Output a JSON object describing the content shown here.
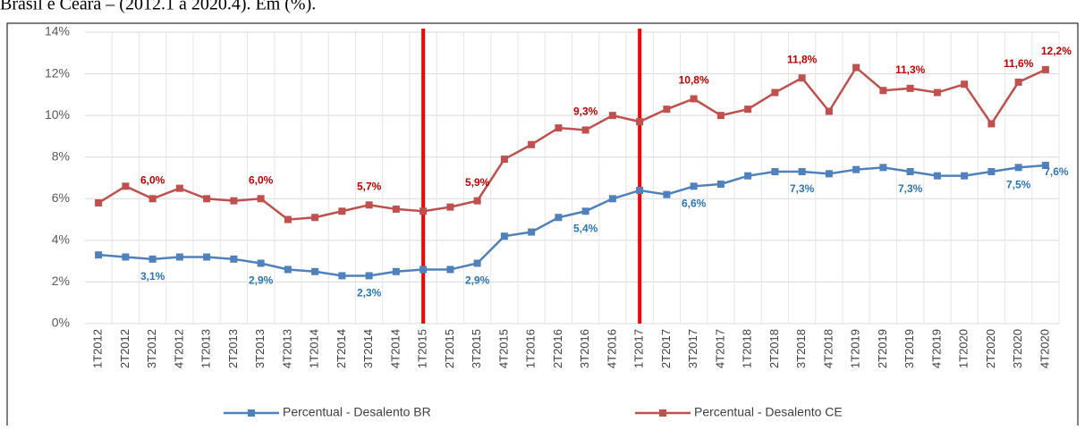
{
  "chart_data": {
    "type": "line",
    "title": "Brasil e Ceará – (2012.1 a 2020.4). Em (%).",
    "categories": [
      "1T2012",
      "2T2012",
      "3T2012",
      "4T2012",
      "1T2013",
      "2T2013",
      "3T2013",
      "4T2013",
      "1T2014",
      "2T2014",
      "3T2014",
      "4T2014",
      "1T2015",
      "2T2015",
      "3T2015",
      "4T2015",
      "1T2016",
      "2T2016",
      "3T2016",
      "4T2016",
      "1T2017",
      "2T2017",
      "3T2017",
      "4T2017",
      "1T2018",
      "2T2018",
      "3T2018",
      "4T2018",
      "1T2019",
      "2T2019",
      "3T2019",
      "4T2019",
      "1T2020",
      "2T2020",
      "3T2020",
      "4T2020"
    ],
    "series": [
      {
        "name": "Percentual - Desalento BR",
        "color": "#4f81bd",
        "label_color": "#2e75b6",
        "values": [
          3.3,
          3.2,
          3.1,
          3.2,
          3.2,
          3.1,
          2.9,
          2.6,
          2.5,
          2.3,
          2.3,
          2.5,
          2.6,
          2.6,
          2.9,
          4.2,
          4.4,
          5.1,
          5.4,
          6.0,
          6.4,
          6.2,
          6.6,
          6.7,
          7.1,
          7.3,
          7.3,
          7.2,
          7.4,
          7.5,
          7.3,
          7.1,
          7.1,
          7.3,
          7.5,
          7.6
        ],
        "value_labels": [
          null,
          null,
          "3,1%",
          null,
          null,
          null,
          "2,9%",
          null,
          null,
          null,
          "2,3%",
          null,
          null,
          null,
          "2,9%",
          null,
          null,
          null,
          "5,4%",
          null,
          null,
          null,
          "6,6%",
          null,
          null,
          null,
          "7,3%",
          null,
          null,
          null,
          "7,3%",
          null,
          null,
          null,
          "7,5%",
          "7,6%"
        ]
      },
      {
        "name": "Percentual - Desalento CE",
        "color": "#c0504d",
        "label_color": "#c00000",
        "values": [
          5.8,
          6.6,
          6.0,
          6.5,
          6.0,
          5.9,
          6.0,
          5.0,
          5.1,
          5.4,
          5.7,
          5.5,
          5.4,
          5.6,
          5.9,
          7.9,
          8.6,
          9.4,
          9.3,
          10.0,
          9.7,
          10.3,
          10.8,
          10.0,
          10.3,
          11.1,
          11.8,
          10.2,
          12.3,
          11.2,
          11.3,
          11.1,
          11.5,
          9.6,
          11.6,
          12.2
        ],
        "value_labels": [
          null,
          null,
          "6,0%",
          null,
          null,
          null,
          "6,0%",
          null,
          null,
          null,
          "5,7%",
          null,
          null,
          null,
          "5,9%",
          null,
          null,
          null,
          "9,3%",
          null,
          null,
          null,
          "10,8%",
          null,
          null,
          null,
          "11,8%",
          null,
          null,
          null,
          "11,3%",
          null,
          null,
          null,
          "11,6%",
          "12,2%"
        ]
      }
    ],
    "ylim": [
      0,
      14
    ],
    "yticks": [
      {
        "value": 0,
        "label": "0%"
      },
      {
        "value": 2,
        "label": "2%"
      },
      {
        "value": 4,
        "label": "4%"
      },
      {
        "value": 6,
        "label": "6%"
      },
      {
        "value": 8,
        "label": "8%"
      },
      {
        "value": 10,
        "label": "10%"
      },
      {
        "value": 12,
        "label": "12%"
      },
      {
        "value": 14,
        "label": "14%"
      }
    ],
    "grid": true,
    "vertical_lines": [
      "1T2015",
      "1T2017"
    ],
    "vertical_line_color": "#ff0000",
    "legend": "bottom"
  }
}
